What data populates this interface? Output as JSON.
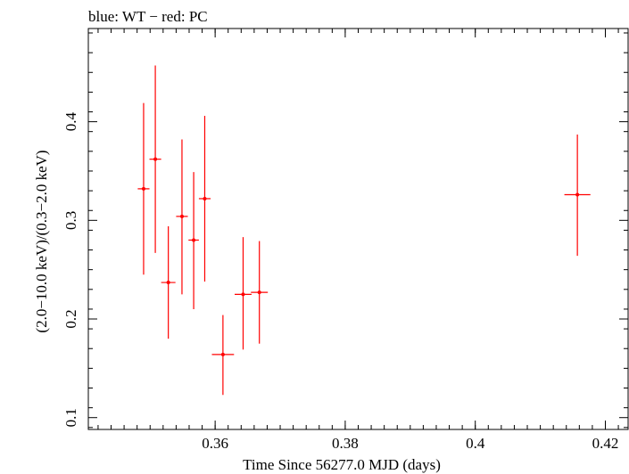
{
  "chart_data": {
    "type": "scatter",
    "title": "blue: WT − red: PC",
    "xlabel": "Time Since 56277.0 MJD (days)",
    "ylabel": "(2.0−10.0 keV)/(0.3−2.0 keV)",
    "xlim": [
      0.3405,
      0.4235
    ],
    "ylim": [
      0.088,
      0.4945
    ],
    "xticks": [
      0.36,
      0.38,
      0.4,
      0.42
    ],
    "xtick_labels": [
      "0.36",
      "0.38",
      "0.4",
      "0.42"
    ],
    "yticks": [
      0.1,
      0.2,
      0.3,
      0.4
    ],
    "ytick_labels": [
      "0.1",
      "0.2",
      "0.3",
      "0.4"
    ],
    "grid": false,
    "series": [
      {
        "name": "PC",
        "color": "#ff0000",
        "points": [
          {
            "x": 0.349,
            "xerr": 0.0009,
            "y": 0.332,
            "ylo": 0.245,
            "yhi": 0.419
          },
          {
            "x": 0.3508,
            "xerr": 0.0009,
            "y": 0.362,
            "ylo": 0.267,
            "yhi": 0.457
          },
          {
            "x": 0.3528,
            "xerr": 0.0011,
            "y": 0.237,
            "ylo": 0.18,
            "yhi": 0.294
          },
          {
            "x": 0.3549,
            "xerr": 0.0009,
            "y": 0.304,
            "ylo": 0.225,
            "yhi": 0.382
          },
          {
            "x": 0.3567,
            "xerr": 0.0008,
            "y": 0.28,
            "ylo": 0.21,
            "yhi": 0.349
          },
          {
            "x": 0.3584,
            "xerr": 0.0009,
            "y": 0.322,
            "ylo": 0.238,
            "yhi": 0.406
          },
          {
            "x": 0.3612,
            "xerr": 0.0017,
            "y": 0.164,
            "ylo": 0.123,
            "yhi": 0.204
          },
          {
            "x": 0.3643,
            "xerr": 0.0013,
            "y": 0.225,
            "ylo": 0.169,
            "yhi": 0.283
          },
          {
            "x": 0.3668,
            "xerr": 0.0013,
            "y": 0.227,
            "ylo": 0.175,
            "yhi": 0.279
          },
          {
            "x": 0.4157,
            "xerr": 0.002,
            "y": 0.326,
            "ylo": 0.264,
            "yhi": 0.387
          }
        ]
      }
    ]
  }
}
